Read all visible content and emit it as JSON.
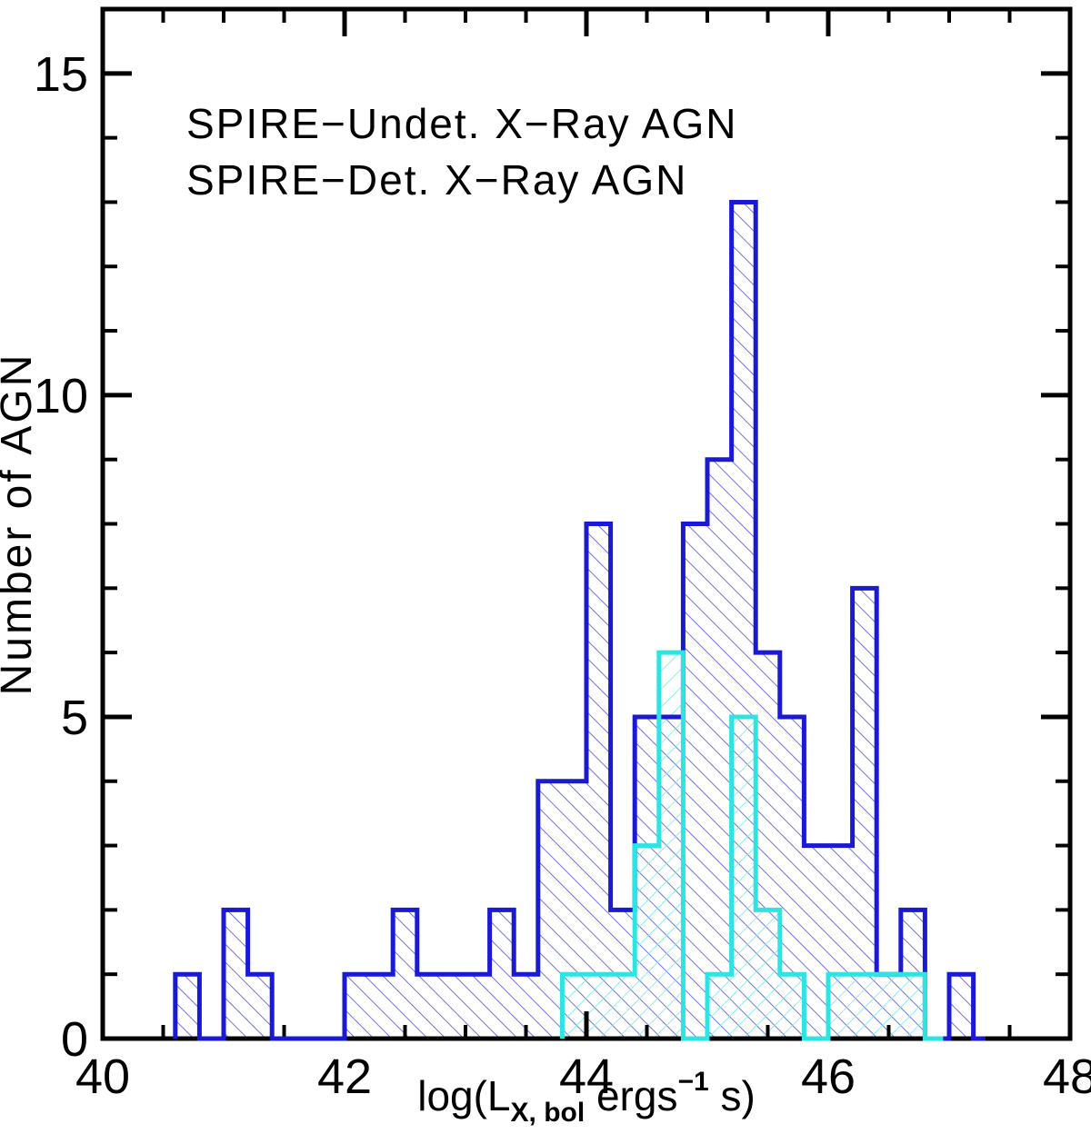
{
  "chart_data": {
    "type": "bar",
    "subtype": "step-histogram",
    "title": "",
    "xlabel_parts": {
      "prefix": "log(L",
      "subscript": "X, bol",
      "middle": " ergs",
      "superscript": "−1",
      "suffix": " s)"
    },
    "xlabel_plain": "log(L_X, bol ergs^-1 s)",
    "ylabel": "Number of AGN",
    "x_axis": {
      "min": 40,
      "max": 48,
      "major_ticks": [
        40,
        42,
        44,
        46,
        48
      ],
      "tick_labels": [
        "40",
        "42",
        "44",
        "46",
        "48"
      ],
      "minor_step": 0.5
    },
    "y_axis": {
      "min": 0,
      "max": 16,
      "major_ticks": [
        0,
        5,
        10,
        15
      ],
      "tick_labels": [
        "0",
        "5",
        "10",
        "15"
      ],
      "minor_step": 1
    },
    "bin_width": 0.2,
    "grid": false,
    "legend_position": "top-left-inside",
    "series": [
      {
        "name": "SPIRE−Undet. X−Ray AGN",
        "color": "#1a1ad2",
        "hatch_color": "#5c5cd6",
        "hatch_direction": "\\",
        "bin_start": 40.6,
        "values": [
          1,
          0,
          2,
          1,
          0,
          0,
          0,
          1,
          1,
          2,
          1,
          1,
          1,
          2,
          1,
          4,
          4,
          8,
          2,
          5,
          5,
          8,
          9,
          13,
          6,
          5,
          3,
          3,
          7,
          1,
          2,
          0,
          1
        ],
        "baseline_tail": 0.1
      },
      {
        "name": "SPIRE−Det. X−Ray AGN",
        "color": "#2ee4e2",
        "hatch_color": "#79ece8",
        "hatch_direction": "/",
        "bin_start": 43.8,
        "values": [
          1,
          1,
          1,
          3,
          6,
          0,
          1,
          5,
          2,
          1,
          0,
          1,
          1,
          1,
          1
        ],
        "baseline_tail": 0.15
      }
    ],
    "legend": {
      "items": [
        {
          "label": "SPIRE−Undet. X−Ray AGN",
          "color": "#1a1ad2"
        },
        {
          "label": "SPIRE−Det. X−Ray AGN",
          "color": "#2ee4e2"
        }
      ]
    },
    "axis_color": "#000000",
    "background_color": "#ffffff"
  }
}
